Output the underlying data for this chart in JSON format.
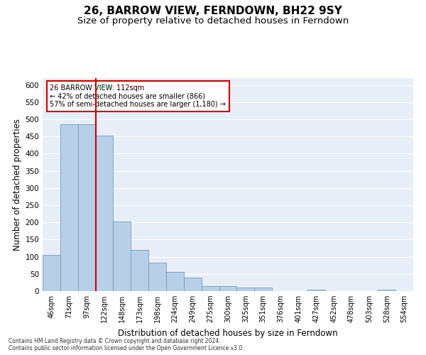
{
  "title": "26, BARROW VIEW, FERNDOWN, BH22 9SY",
  "subtitle": "Size of property relative to detached houses in Ferndown",
  "xlabel": "Distribution of detached houses by size in Ferndown",
  "ylabel": "Number of detached properties",
  "bar_labels": [
    "46sqm",
    "71sqm",
    "97sqm",
    "122sqm",
    "148sqm",
    "173sqm",
    "198sqm",
    "224sqm",
    "249sqm",
    "275sqm",
    "300sqm",
    "325sqm",
    "351sqm",
    "376sqm",
    "401sqm",
    "427sqm",
    "452sqm",
    "478sqm",
    "503sqm",
    "528sqm",
    "554sqm"
  ],
  "bar_values": [
    105,
    485,
    485,
    452,
    202,
    120,
    82,
    55,
    40,
    15,
    15,
    10,
    10,
    0,
    0,
    5,
    0,
    0,
    0,
    5,
    0
  ],
  "bar_color": "#b8cfe8",
  "bar_edge_color": "#6b9dc2",
  "red_line_x": 2.5,
  "ylim": [
    0,
    620
  ],
  "yticks": [
    0,
    50,
    100,
    150,
    200,
    250,
    300,
    350,
    400,
    450,
    500,
    550,
    600
  ],
  "annotation_text": "26 BARROW VIEW: 112sqm\n← 42% of detached houses are smaller (866)\n57% of semi-detached houses are larger (1,180) →",
  "annotation_box_color": "#ffffff",
  "annotation_box_edge": "#cc0000",
  "background_color": "#e8eef8",
  "grid_color": "#ffffff",
  "footer_text": "Contains HM Land Registry data © Crown copyright and database right 2024.\nContains public sector information licensed under the Open Government Licence v3.0.",
  "title_fontsize": 11,
  "subtitle_fontsize": 9.5,
  "xlabel_fontsize": 8.5,
  "ylabel_fontsize": 8.5,
  "tick_fontsize": 7,
  "ytick_fontsize": 7.5,
  "footer_fontsize": 5.5,
  "annot_fontsize": 7
}
